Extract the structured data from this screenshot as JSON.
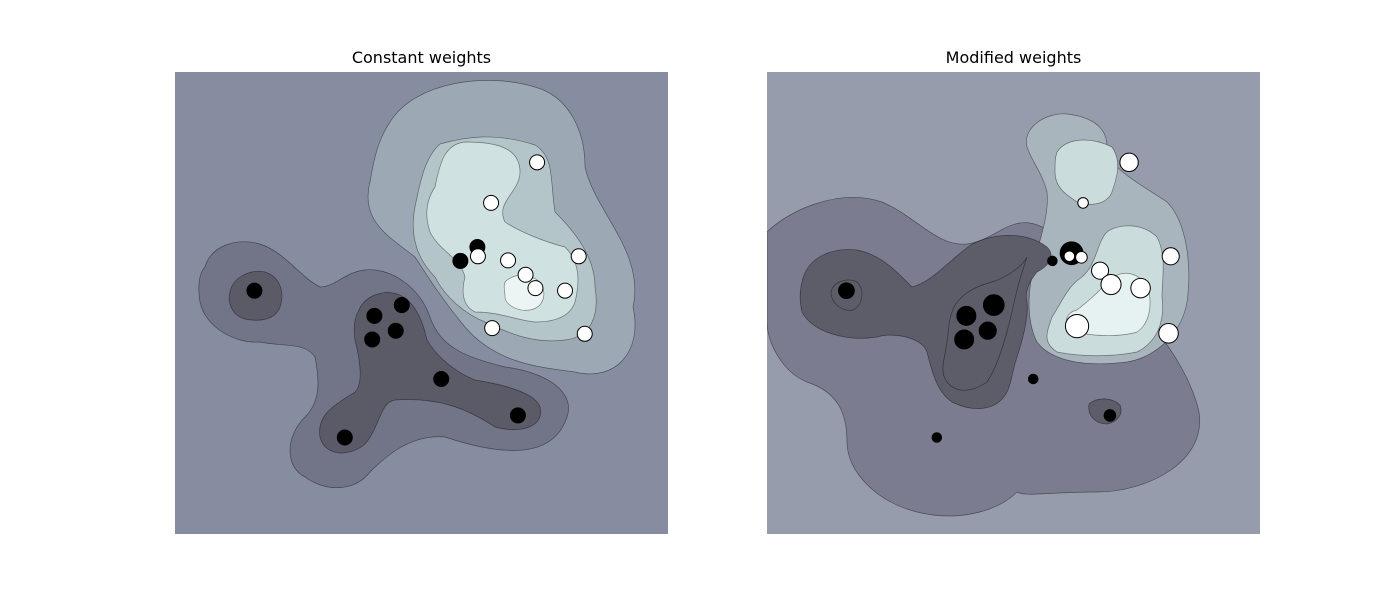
{
  "chart_data": [
    {
      "type": "scatter",
      "title": "Constant weights",
      "xlim": [
        -4,
        5
      ],
      "ylim": [
        -4,
        5
      ],
      "colors": {
        "level_1": "#878da0",
        "level_2": "#727488",
        "level_3": "#5b5b68",
        "level_4": "#9ca9b4",
        "level_5": "#b4c5c9",
        "level_6": "#d0e1e1",
        "level_7": "#ecf5f4",
        "class_0": "#000000",
        "class_1": "#ffffff"
      },
      "series": [
        {
          "points": [
            {
              "x": -2.55,
              "y": 0.74,
              "w": 1
            },
            {
              "x": -0.36,
              "y": 0.25,
              "w": 1
            },
            {
              "x": 0.14,
              "y": 0.46,
              "w": 1
            },
            {
              "x": -0.4,
              "y": -0.21,
              "w": 1
            },
            {
              "x": 0.03,
              "y": -0.04,
              "w": 1
            },
            {
              "x": -0.9,
              "y": -2.12,
              "w": 1
            },
            {
              "x": 0.86,
              "y": -0.98,
              "w": 1
            },
            {
              "x": 2.26,
              "y": -1.69,
              "w": 1
            },
            {
              "x": 1.21,
              "y": 1.32,
              "w": 1
            },
            {
              "x": 1.52,
              "y": 1.59,
              "w": 1
            }
          ]
        },
        {
          "points": [
            {
              "x": 2.61,
              "y": 3.24,
              "w": 1
            },
            {
              "x": 1.77,
              "y": 2.45,
              "w": 1
            },
            {
              "x": 1.53,
              "y": 1.41,
              "w": 1
            },
            {
              "x": 2.08,
              "y": 1.33,
              "w": 1
            },
            {
              "x": 2.4,
              "y": 1.05,
              "w": 1
            },
            {
              "x": 2.58,
              "y": 0.79,
              "w": 1
            },
            {
              "x": 3.12,
              "y": 0.74,
              "w": 1
            },
            {
              "x": 3.37,
              "y": 1.41,
              "w": 1
            },
            {
              "x": 1.79,
              "y": 0.01,
              "w": 1
            },
            {
              "x": 3.48,
              "y": -0.1,
              "w": 1
            }
          ]
        }
      ]
    },
    {
      "type": "scatter",
      "title": "Modified weights",
      "xlim": [
        -4,
        5
      ],
      "ylim": [
        -4,
        5
      ],
      "colors": {
        "level_1": "#969cac",
        "level_2": "#7b7c90",
        "level_3": "#5d5d6a",
        "level_4": "#a9b5bd",
        "level_5": "#cadcdc",
        "level_6": "#e6f2f1",
        "class_0": "#000000",
        "class_1": "#ffffff"
      },
      "series": [
        {
          "points": [
            {
              "x": -2.55,
              "y": 0.74,
              "w": 1.1
            },
            {
              "x": -0.36,
              "y": 0.25,
              "w": 1.6
            },
            {
              "x": 0.14,
              "y": 0.46,
              "w": 1.9
            },
            {
              "x": -0.4,
              "y": -0.21,
              "w": 1.6
            },
            {
              "x": 0.03,
              "y": -0.04,
              "w": 1.3
            },
            {
              "x": -0.9,
              "y": -2.12,
              "w": 0.4
            },
            {
              "x": 0.86,
              "y": -0.98,
              "w": 0.4
            },
            {
              "x": 2.26,
              "y": -1.69,
              "w": 0.6
            },
            {
              "x": 1.21,
              "y": 1.32,
              "w": 0.4
            },
            {
              "x": 1.56,
              "y": 1.47,
              "w": 2.3
            }
          ]
        },
        {
          "points": [
            {
              "x": 2.61,
              "y": 3.24,
              "w": 1.5
            },
            {
              "x": 1.77,
              "y": 2.45,
              "w": 0.5
            },
            {
              "x": 1.52,
              "y": 1.41,
              "w": 0.5
            },
            {
              "x": 1.74,
              "y": 1.39,
              "w": 0.6
            },
            {
              "x": 2.08,
              "y": 1.13,
              "w": 1.3
            },
            {
              "x": 2.28,
              "y": 0.86,
              "w": 1.8
            },
            {
              "x": 2.82,
              "y": 0.79,
              "w": 1.7
            },
            {
              "x": 3.37,
              "y": 1.41,
              "w": 1.3
            },
            {
              "x": 1.66,
              "y": 0.05,
              "w": 2.4
            },
            {
              "x": 3.33,
              "y": -0.09,
              "w": 1.7
            }
          ]
        }
      ]
    }
  ]
}
